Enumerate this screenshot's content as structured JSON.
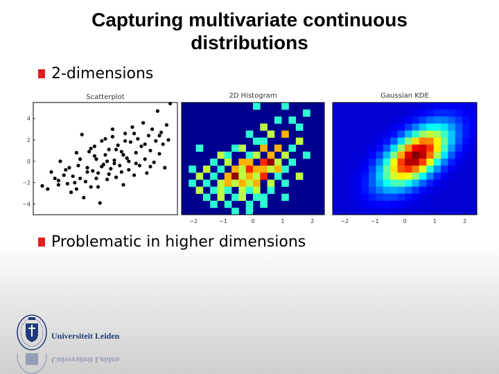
{
  "slide": {
    "title_line1": "Capturing multivariate continuous",
    "title_line2": "distributions",
    "bullets": [
      "2-dimensions",
      "Problematic in higher dimensions"
    ],
    "bullet_color": "#e02020"
  },
  "logo": {
    "text": "Universiteit Leiden",
    "color": "#1e3a78"
  },
  "chart_data": [
    {
      "type": "scatter",
      "title": "Scatterplot",
      "ylim": [
        -5,
        5.5
      ],
      "xlim": [
        -4,
        4
      ],
      "yticks": [
        "4",
        "2",
        "0",
        "−2",
        "−4"
      ],
      "ytick_values": [
        4,
        2,
        0,
        -2,
        -4
      ],
      "point_color": "#000000",
      "points": [
        [
          -3.5,
          -2.3
        ],
        [
          -3.2,
          -2.6
        ],
        [
          -3.0,
          -1.0
        ],
        [
          -2.8,
          -1.6
        ],
        [
          -2.6,
          -2.2
        ],
        [
          -2.5,
          0.0
        ],
        [
          -2.3,
          -1.3
        ],
        [
          -2.1,
          -2.1
        ],
        [
          -2.0,
          -0.6
        ],
        [
          -1.9,
          -2.9
        ],
        [
          -1.8,
          -1.4
        ],
        [
          -1.7,
          -2.0
        ],
        [
          -1.6,
          0.8
        ],
        [
          -1.5,
          -0.4
        ],
        [
          -1.4,
          -1.6
        ],
        [
          -1.3,
          2.5
        ],
        [
          -1.2,
          -3.4
        ],
        [
          -1.1,
          -1.9
        ],
        [
          -1.0,
          -0.6
        ],
        [
          -0.9,
          0.9
        ],
        [
          -0.8,
          -2.4
        ],
        [
          -0.7,
          -0.9
        ],
        [
          -0.6,
          1.4
        ],
        [
          -0.5,
          -1.6
        ],
        [
          -0.5,
          0.2
        ],
        [
          -0.4,
          -1.1
        ],
        [
          -0.3,
          -3.9
        ],
        [
          -0.2,
          1.9
        ],
        [
          -0.1,
          -0.3
        ],
        [
          0.0,
          0.6
        ],
        [
          0.1,
          -1.7
        ],
        [
          0.2,
          1.1
        ],
        [
          0.3,
          -0.7
        ],
        [
          0.4,
          2.3
        ],
        [
          0.5,
          0.1
        ],
        [
          0.6,
          -1.5
        ],
        [
          0.7,
          1.5
        ],
        [
          0.8,
          -0.4
        ],
        [
          0.9,
          0.9
        ],
        [
          1.0,
          -2.2
        ],
        [
          1.1,
          2.6
        ],
        [
          1.2,
          0.3
        ],
        [
          1.3,
          -0.8
        ],
        [
          1.4,
          1.8
        ],
        [
          1.5,
          3.2
        ],
        [
          1.6,
          -1.3
        ],
        [
          1.7,
          0.8
        ],
        [
          1.8,
          2.1
        ],
        [
          1.9,
          -0.4
        ],
        [
          2.0,
          1.4
        ],
        [
          2.1,
          3.6
        ],
        [
          2.2,
          0.2
        ],
        [
          2.3,
          -1.1
        ],
        [
          2.4,
          2.4
        ],
        [
          2.5,
          1.0
        ],
        [
          2.6,
          3.0
        ],
        [
          2.7,
          -0.1
        ],
        [
          2.8,
          1.9
        ],
        [
          2.9,
          4.7
        ],
        [
          3.0,
          0.7
        ],
        [
          3.1,
          2.7
        ],
        [
          3.2,
          1.6
        ],
        [
          3.3,
          -0.6
        ],
        [
          3.4,
          3.4
        ],
        [
          3.5,
          2.0
        ],
        [
          3.6,
          5.4
        ],
        [
          -0.6,
          0.5
        ],
        [
          0.1,
          0.0
        ],
        [
          0.5,
          -0.2
        ],
        [
          1.0,
          0.6
        ],
        [
          -1.0,
          -1.0
        ],
        [
          -0.2,
          -0.5
        ],
        [
          0.6,
          1.1
        ],
        [
          1.3,
          0.0
        ],
        [
          -1.4,
          0.2
        ],
        [
          0.2,
          -1.2
        ],
        [
          1.7,
          -0.2
        ],
        [
          -0.8,
          1.2
        ],
        [
          0.9,
          -1.0
        ],
        [
          2.2,
          1.6
        ],
        [
          -2.2,
          -0.8
        ],
        [
          -1.6,
          -2.6
        ],
        [
          0.4,
          3.0
        ],
        [
          1.1,
          1.9
        ],
        [
          2.5,
          -0.5
        ],
        [
          -0.4,
          -2.4
        ],
        [
          3.0,
          2.4
        ],
        [
          -2.6,
          -1.8
        ],
        [
          0.0,
          2.1
        ],
        [
          1.6,
          2.6
        ]
      ]
    },
    {
      "type": "heatmap",
      "title": "2D Histogram",
      "xlim": [
        -2.4,
        2.4
      ],
      "xticks": [
        "−2",
        "−1",
        "0",
        "1",
        "2"
      ],
      "xtick_values": [
        -2,
        -1,
        0,
        1,
        2
      ],
      "cols": 20,
      "rows": 16,
      "cells": [
        [
          10,
          0,
          2,
          1
        ],
        [
          14,
          0,
          1,
          1
        ],
        [
          17,
          1,
          1,
          1
        ],
        [
          13,
          2,
          1,
          1
        ],
        [
          15,
          2,
          2,
          1
        ],
        [
          11,
          3,
          1,
          2
        ],
        [
          16,
          3,
          1,
          1
        ],
        [
          9,
          4,
          1,
          1
        ],
        [
          12,
          4,
          2,
          2
        ],
        [
          14,
          4,
          1,
          3
        ],
        [
          10,
          5,
          1,
          1
        ],
        [
          11,
          5,
          3,
          1
        ],
        [
          16,
          5,
          2,
          2
        ],
        [
          2,
          6,
          1,
          1
        ],
        [
          7,
          6,
          1,
          1
        ],
        [
          8,
          6,
          2,
          2
        ],
        [
          11,
          6,
          1,
          3
        ],
        [
          13,
          6,
          1,
          3
        ],
        [
          15,
          6,
          2,
          1
        ],
        [
          5,
          7,
          1,
          2
        ],
        [
          6,
          7,
          1,
          1
        ],
        [
          9,
          7,
          2,
          1
        ],
        [
          10,
          7,
          2,
          2
        ],
        [
          12,
          7,
          1,
          3
        ],
        [
          14,
          7,
          1,
          2
        ],
        [
          17,
          7,
          1,
          1
        ],
        [
          4,
          8,
          1,
          1
        ],
        [
          6,
          8,
          2,
          2
        ],
        [
          8,
          8,
          1,
          3
        ],
        [
          9,
          8,
          2,
          3
        ],
        [
          11,
          8,
          1,
          4
        ],
        [
          12,
          8,
          2,
          5
        ],
        [
          13,
          8,
          1,
          2
        ],
        [
          15,
          8,
          1,
          1
        ],
        [
          1,
          9,
          1,
          1
        ],
        [
          3,
          9,
          1,
          2
        ],
        [
          5,
          9,
          2,
          1
        ],
        [
          7,
          9,
          1,
          3
        ],
        [
          8,
          9,
          1,
          2
        ],
        [
          9,
          9,
          2,
          4
        ],
        [
          10,
          9,
          1,
          3
        ],
        [
          11,
          9,
          2,
          3
        ],
        [
          12,
          9,
          1,
          2
        ],
        [
          13,
          9,
          1,
          3
        ],
        [
          14,
          9,
          1,
          1
        ],
        [
          2,
          10,
          1,
          2
        ],
        [
          4,
          10,
          1,
          1
        ],
        [
          6,
          10,
          2,
          3
        ],
        [
          7,
          10,
          1,
          5
        ],
        [
          8,
          10,
          2,
          2
        ],
        [
          9,
          10,
          1,
          3
        ],
        [
          10,
          10,
          2,
          2
        ],
        [
          11,
          10,
          1,
          4
        ],
        [
          13,
          10,
          1,
          1
        ],
        [
          16,
          10,
          1,
          2
        ],
        [
          1,
          11,
          1,
          1
        ],
        [
          3,
          11,
          2,
          1
        ],
        [
          5,
          11,
          1,
          2
        ],
        [
          6,
          11,
          1,
          3
        ],
        [
          7,
          11,
          2,
          2
        ],
        [
          8,
          11,
          1,
          3
        ],
        [
          9,
          11,
          2,
          2
        ],
        [
          10,
          11,
          1,
          3
        ],
        [
          12,
          11,
          2,
          2
        ],
        [
          14,
          11,
          1,
          1
        ],
        [
          2,
          12,
          1,
          2
        ],
        [
          4,
          12,
          1,
          1
        ],
        [
          5,
          12,
          2,
          2
        ],
        [
          6,
          12,
          1,
          1
        ],
        [
          8,
          12,
          1,
          2
        ],
        [
          9,
          12,
          2,
          1
        ],
        [
          10,
          12,
          1,
          2
        ],
        [
          12,
          12,
          1,
          1
        ],
        [
          3,
          13,
          2,
          1
        ],
        [
          5,
          13,
          1,
          2
        ],
        [
          7,
          13,
          1,
          1
        ],
        [
          8,
          13,
          2,
          2
        ],
        [
          10,
          13,
          1,
          1
        ],
        [
          11,
          13,
          1,
          1
        ],
        [
          14,
          13,
          1,
          1
        ],
        [
          4,
          14,
          1,
          1
        ],
        [
          6,
          14,
          1,
          1
        ],
        [
          9,
          14,
          1,
          1
        ],
        [
          11,
          14,
          2,
          1
        ],
        [
          7,
          15,
          1,
          1
        ],
        [
          9,
          15,
          1,
          1
        ]
      ]
    },
    {
      "type": "heatmap",
      "title": "Gaussian KDE",
      "xlim": [
        -2.4,
        2.4
      ],
      "xticks": [
        "−2",
        "−1",
        "0",
        "1",
        "2"
      ],
      "xtick_values": [
        -2,
        -1,
        0,
        1,
        2
      ],
      "cols": 20,
      "rows": 16,
      "center": [
        11.0,
        7.2
      ],
      "covariance": [
        [
          9.5,
          -5.2
        ],
        [
          -5.2,
          8.0
        ]
      ]
    }
  ]
}
